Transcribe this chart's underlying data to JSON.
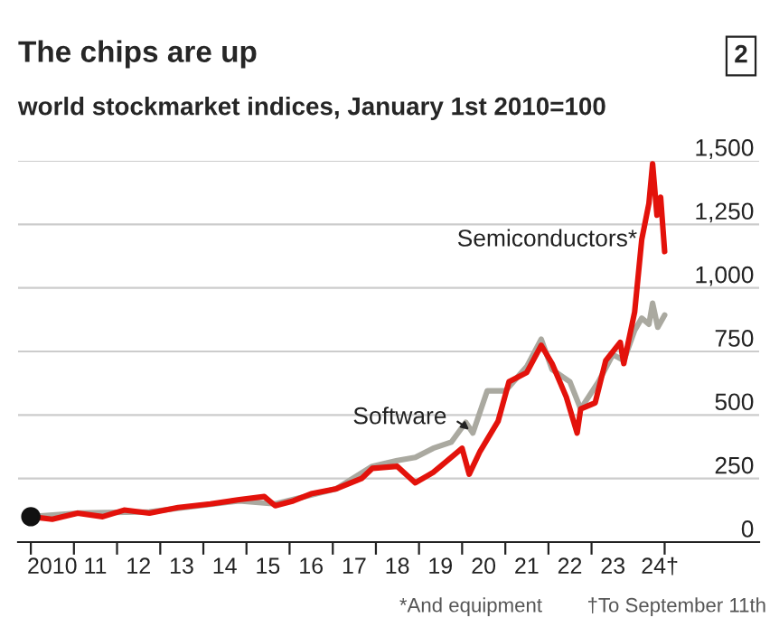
{
  "chart_data": {
    "type": "line",
    "title": "The chips are up",
    "subtitle": "world stockmarket indices, January 1st 2010=100",
    "annotations": [
      "2",
      "*And equipment",
      "†To September 11th"
    ],
    "series": [
      {
        "name": "Software",
        "color": "#aaa9a0",
        "x": [
          "2010-01-01",
          "2011-02-01",
          "2012-10-01",
          "2014-11-01",
          "2015-09-01",
          "2017-02-01",
          "2017-12-01",
          "2018-07-01",
          "2018-12-01",
          "2019-05-01",
          "2019-10-01",
          "2020-02-01",
          "2020-04-01",
          "2020-08-01",
          "2021-01-01",
          "2021-07-01",
          "2021-11-01",
          "2022-02-01",
          "2022-07-01",
          "2022-10-01",
          "2023-03-01",
          "2023-07-01",
          "2023-10-01",
          "2024-01-01",
          "2024-03-01",
          "2024-05-01",
          "2024-06-01",
          "2024-07-15",
          "2024-09-11"
        ],
        "values": [
          100,
          114,
          119,
          162,
          150,
          210,
          298,
          321,
          333,
          369,
          393,
          471,
          429,
          595,
          595,
          690,
          798,
          679,
          631,
          524,
          631,
          738,
          714,
          833,
          881,
          857,
          940,
          845,
          893
        ]
      },
      {
        "name": "Semiconductors*",
        "color": "#e3120b",
        "x": [
          "2010-01-01",
          "2010-07-01",
          "2011-02-01",
          "2011-09-01",
          "2012-03-01",
          "2012-10-01",
          "2013-06-01",
          "2014-03-01",
          "2014-11-01",
          "2015-06-01",
          "2015-09-01",
          "2016-02-01",
          "2016-07-01",
          "2017-02-01",
          "2017-09-01",
          "2017-12-01",
          "2018-07-01",
          "2018-12-01",
          "2019-05-01",
          "2020-01-01",
          "2020-03-01",
          "2020-06-01",
          "2020-11-01",
          "2021-02-01",
          "2021-07-01",
          "2021-11-01",
          "2022-02-01",
          "2022-06-01",
          "2022-09-01",
          "2022-10-01",
          "2023-02-01",
          "2023-05-01",
          "2023-09-01",
          "2023-10-01",
          "2024-01-01",
          "2024-03-01",
          "2024-05-01",
          "2024-06-01",
          "2024-07-08",
          "2024-08-08",
          "2024-09-11"
        ],
        "values": [
          100,
          90,
          114,
          100,
          126,
          114,
          136,
          150,
          167,
          179,
          143,
          162,
          190,
          210,
          250,
          290,
          298,
          233,
          274,
          369,
          267,
          357,
          476,
          631,
          667,
          774,
          702,
          571,
          429,
          524,
          548,
          714,
          786,
          702,
          905,
          1190,
          1333,
          1488,
          1286,
          1357,
          1143
        ]
      },
      {
        "type": "scatter",
        "color": "#111111",
        "x": [
          "2010-01-01"
        ],
        "values": [
          100
        ]
      }
    ],
    "xlim": [
      "2009-09-15",
      "2026-11-20"
    ],
    "ylim": [
      0,
      1500
    ],
    "yticks": [
      0,
      250,
      500,
      750,
      {
        "value": 1000,
        "label": "1,000"
      },
      {
        "value": 1250,
        "label": "1,250"
      },
      {
        "value": 1500,
        "label": "1,500"
      }
    ],
    "xticks": [
      {
        "value": "2010-01-01",
        "label": null
      },
      {
        "value": "2011-01-01",
        "label": null
      },
      {
        "value": "2012-01-01",
        "label": null
      },
      {
        "value": "2013-01-01",
        "label": null
      },
      {
        "value": "2014-01-01",
        "label": null
      },
      {
        "value": "2015-01-01",
        "label": null
      },
      {
        "value": "2016-01-01",
        "label": null
      },
      {
        "value": "2017-01-01",
        "label": null
      },
      {
        "value": "2018-01-01",
        "label": null
      },
      {
        "value": "2019-01-01",
        "label": null
      },
      {
        "value": "2020-01-01",
        "label": null
      },
      {
        "value": "2021-01-01",
        "label": null
      },
      {
        "value": "2022-01-01",
        "label": null
      },
      {
        "value": "2023-01-01",
        "label": null
      },
      {
        "value": "2024-09-11",
        "label": null
      },
      {
        "value": "2010-07-01",
        "label": "2010"
      },
      {
        "value": "2011-07-01",
        "label": "11"
      },
      {
        "value": "2012-07-01",
        "label": "12"
      },
      {
        "value": "2013-07-01",
        "label": "13"
      },
      {
        "value": "2014-07-01",
        "label": "14"
      },
      {
        "value": "2015-07-01",
        "label": "15"
      },
      {
        "value": "2016-07-01",
        "label": "16"
      },
      {
        "value": "2017-07-01",
        "label": "17"
      },
      {
        "value": "2018-07-01",
        "label": "18"
      },
      {
        "value": "2019-07-01",
        "label": "19"
      },
      {
        "value": "2020-07-01",
        "label": "20"
      },
      {
        "value": "2021-07-01",
        "label": "21"
      },
      {
        "value": "2022-07-01",
        "label": "22"
      },
      {
        "value": "2023-07-01",
        "label": "23"
      },
      {
        "value": "2024-08-01",
        "label": "24†"
      }
    ],
    "grid": "y",
    "legend": false
  }
}
